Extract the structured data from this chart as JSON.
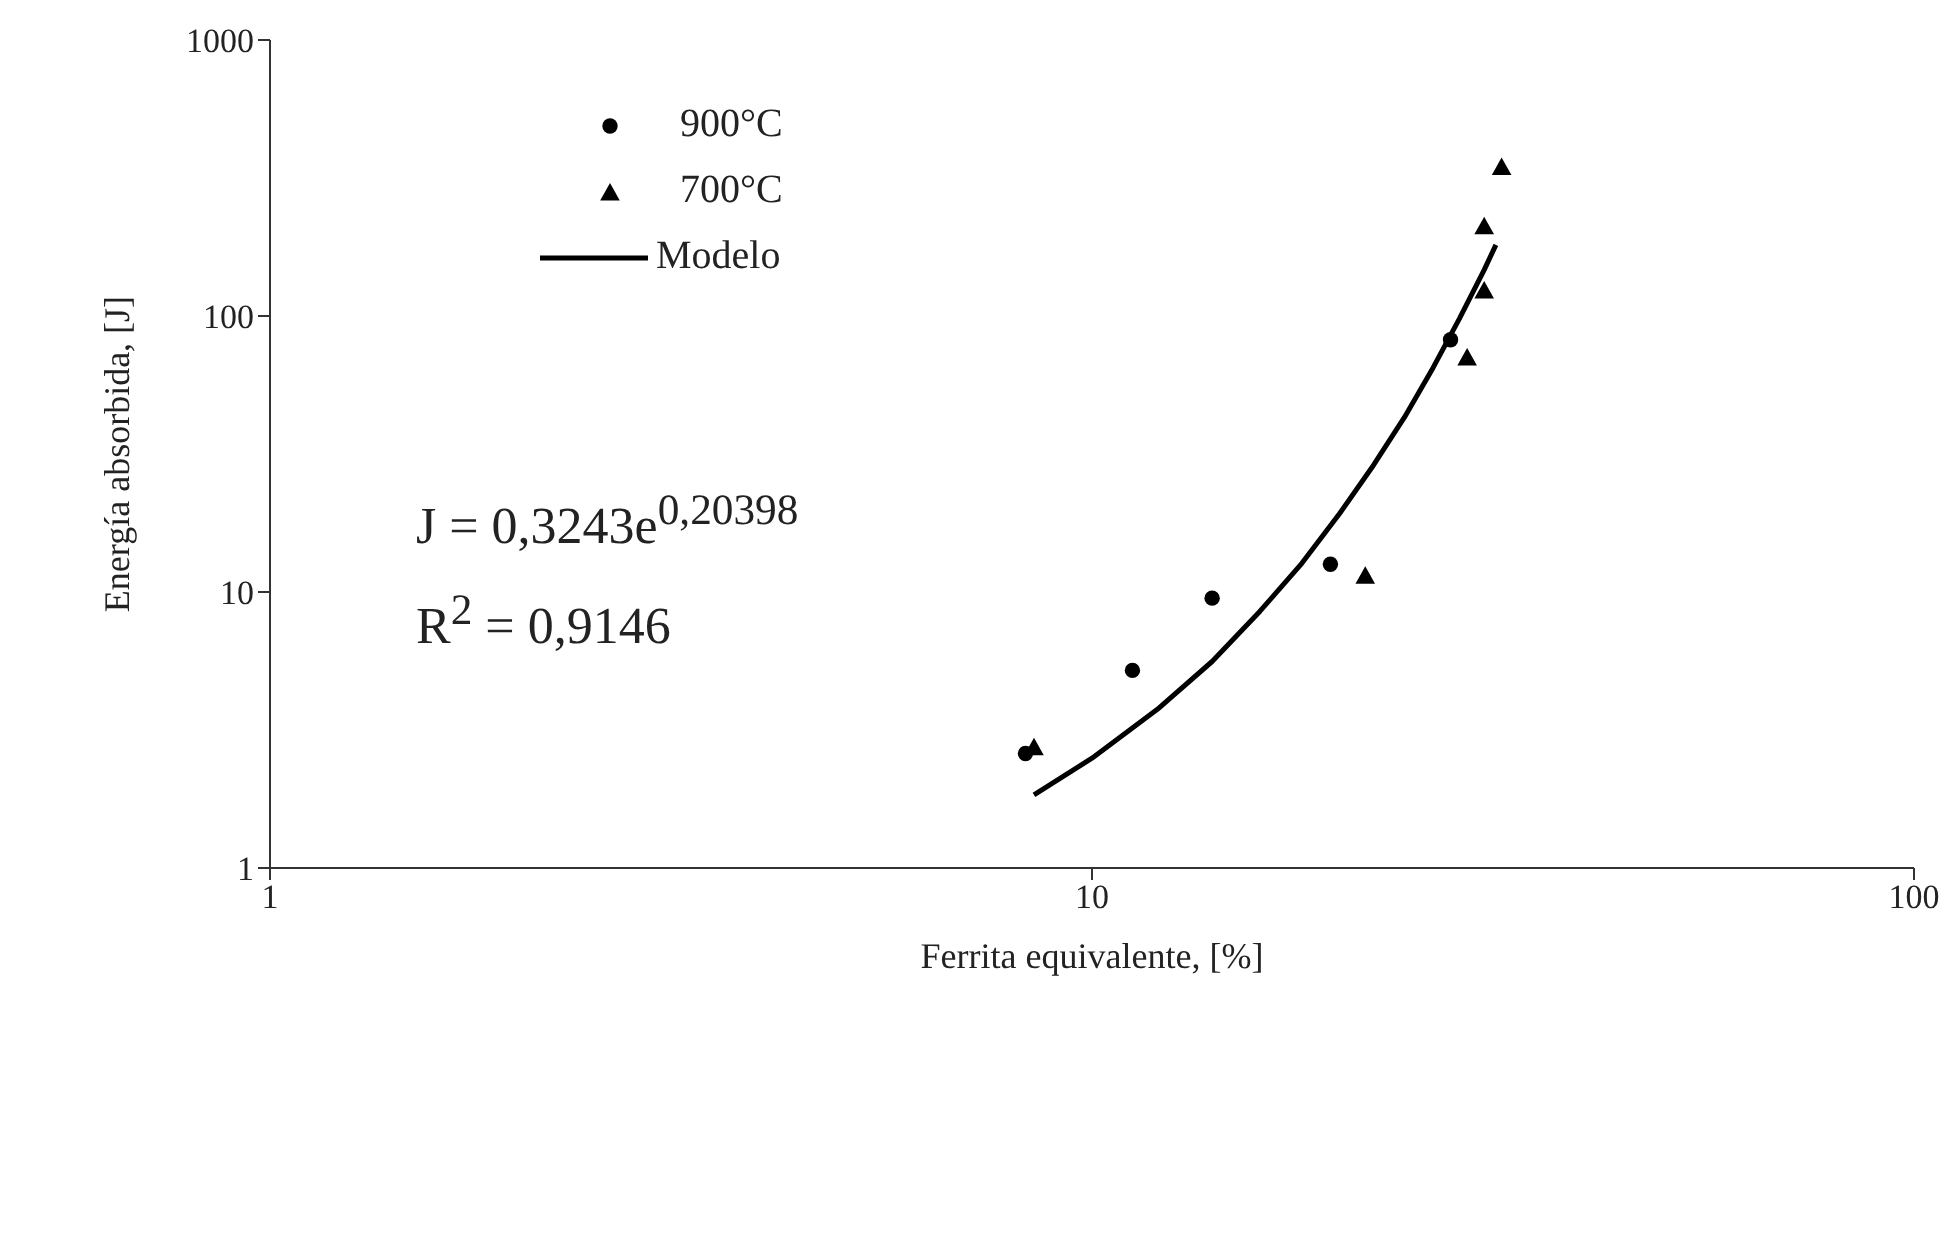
{
  "chart_data": {
    "type": "scatter",
    "xlabel": "Ferrita equivalente, [%]",
    "ylabel": "Energía absorbida,  [J]",
    "log": "xy",
    "xlim": [
      1,
      100
    ],
    "xticks": [
      1,
      10,
      100
    ],
    "ylim": [
      1,
      1000
    ],
    "yticks": [
      1,
      10,
      100,
      1000
    ],
    "legend": "top left",
    "series": [
      {
        "name": "900°C",
        "marker": "circle",
        "color": "#000000",
        "x": [
          8.3,
          11.2,
          14.0,
          19.5,
          27.3
        ],
        "values": [
          2.6,
          5.2,
          9.5,
          12.6,
          82
        ]
      },
      {
        "name": "700°C",
        "marker": "triangle",
        "color": "#000000",
        "x": [
          8.5,
          21.5,
          28.6,
          30.0,
          30.0,
          31.5
        ],
        "values": [
          2.75,
          11.5,
          71,
          124,
          212,
          348
        ]
      },
      {
        "name": "Modelo",
        "type": "line",
        "marker": "none",
        "line_style": "solid",
        "color": "#000000",
        "x": [
          8.5,
          10,
          12,
          14,
          16,
          18,
          20,
          22,
          24,
          26,
          28,
          30,
          31
        ],
        "values": [
          1.84,
          2.5,
          3.75,
          5.6,
          8.5,
          12.7,
          19.2,
          28.8,
          43,
          65,
          98,
          147,
          181
        ]
      }
    ],
    "annotations": [
      "J = 0,3243e$^{0,20398}$",
      "R$^{2}$ = 0,9146"
    ]
  }
}
